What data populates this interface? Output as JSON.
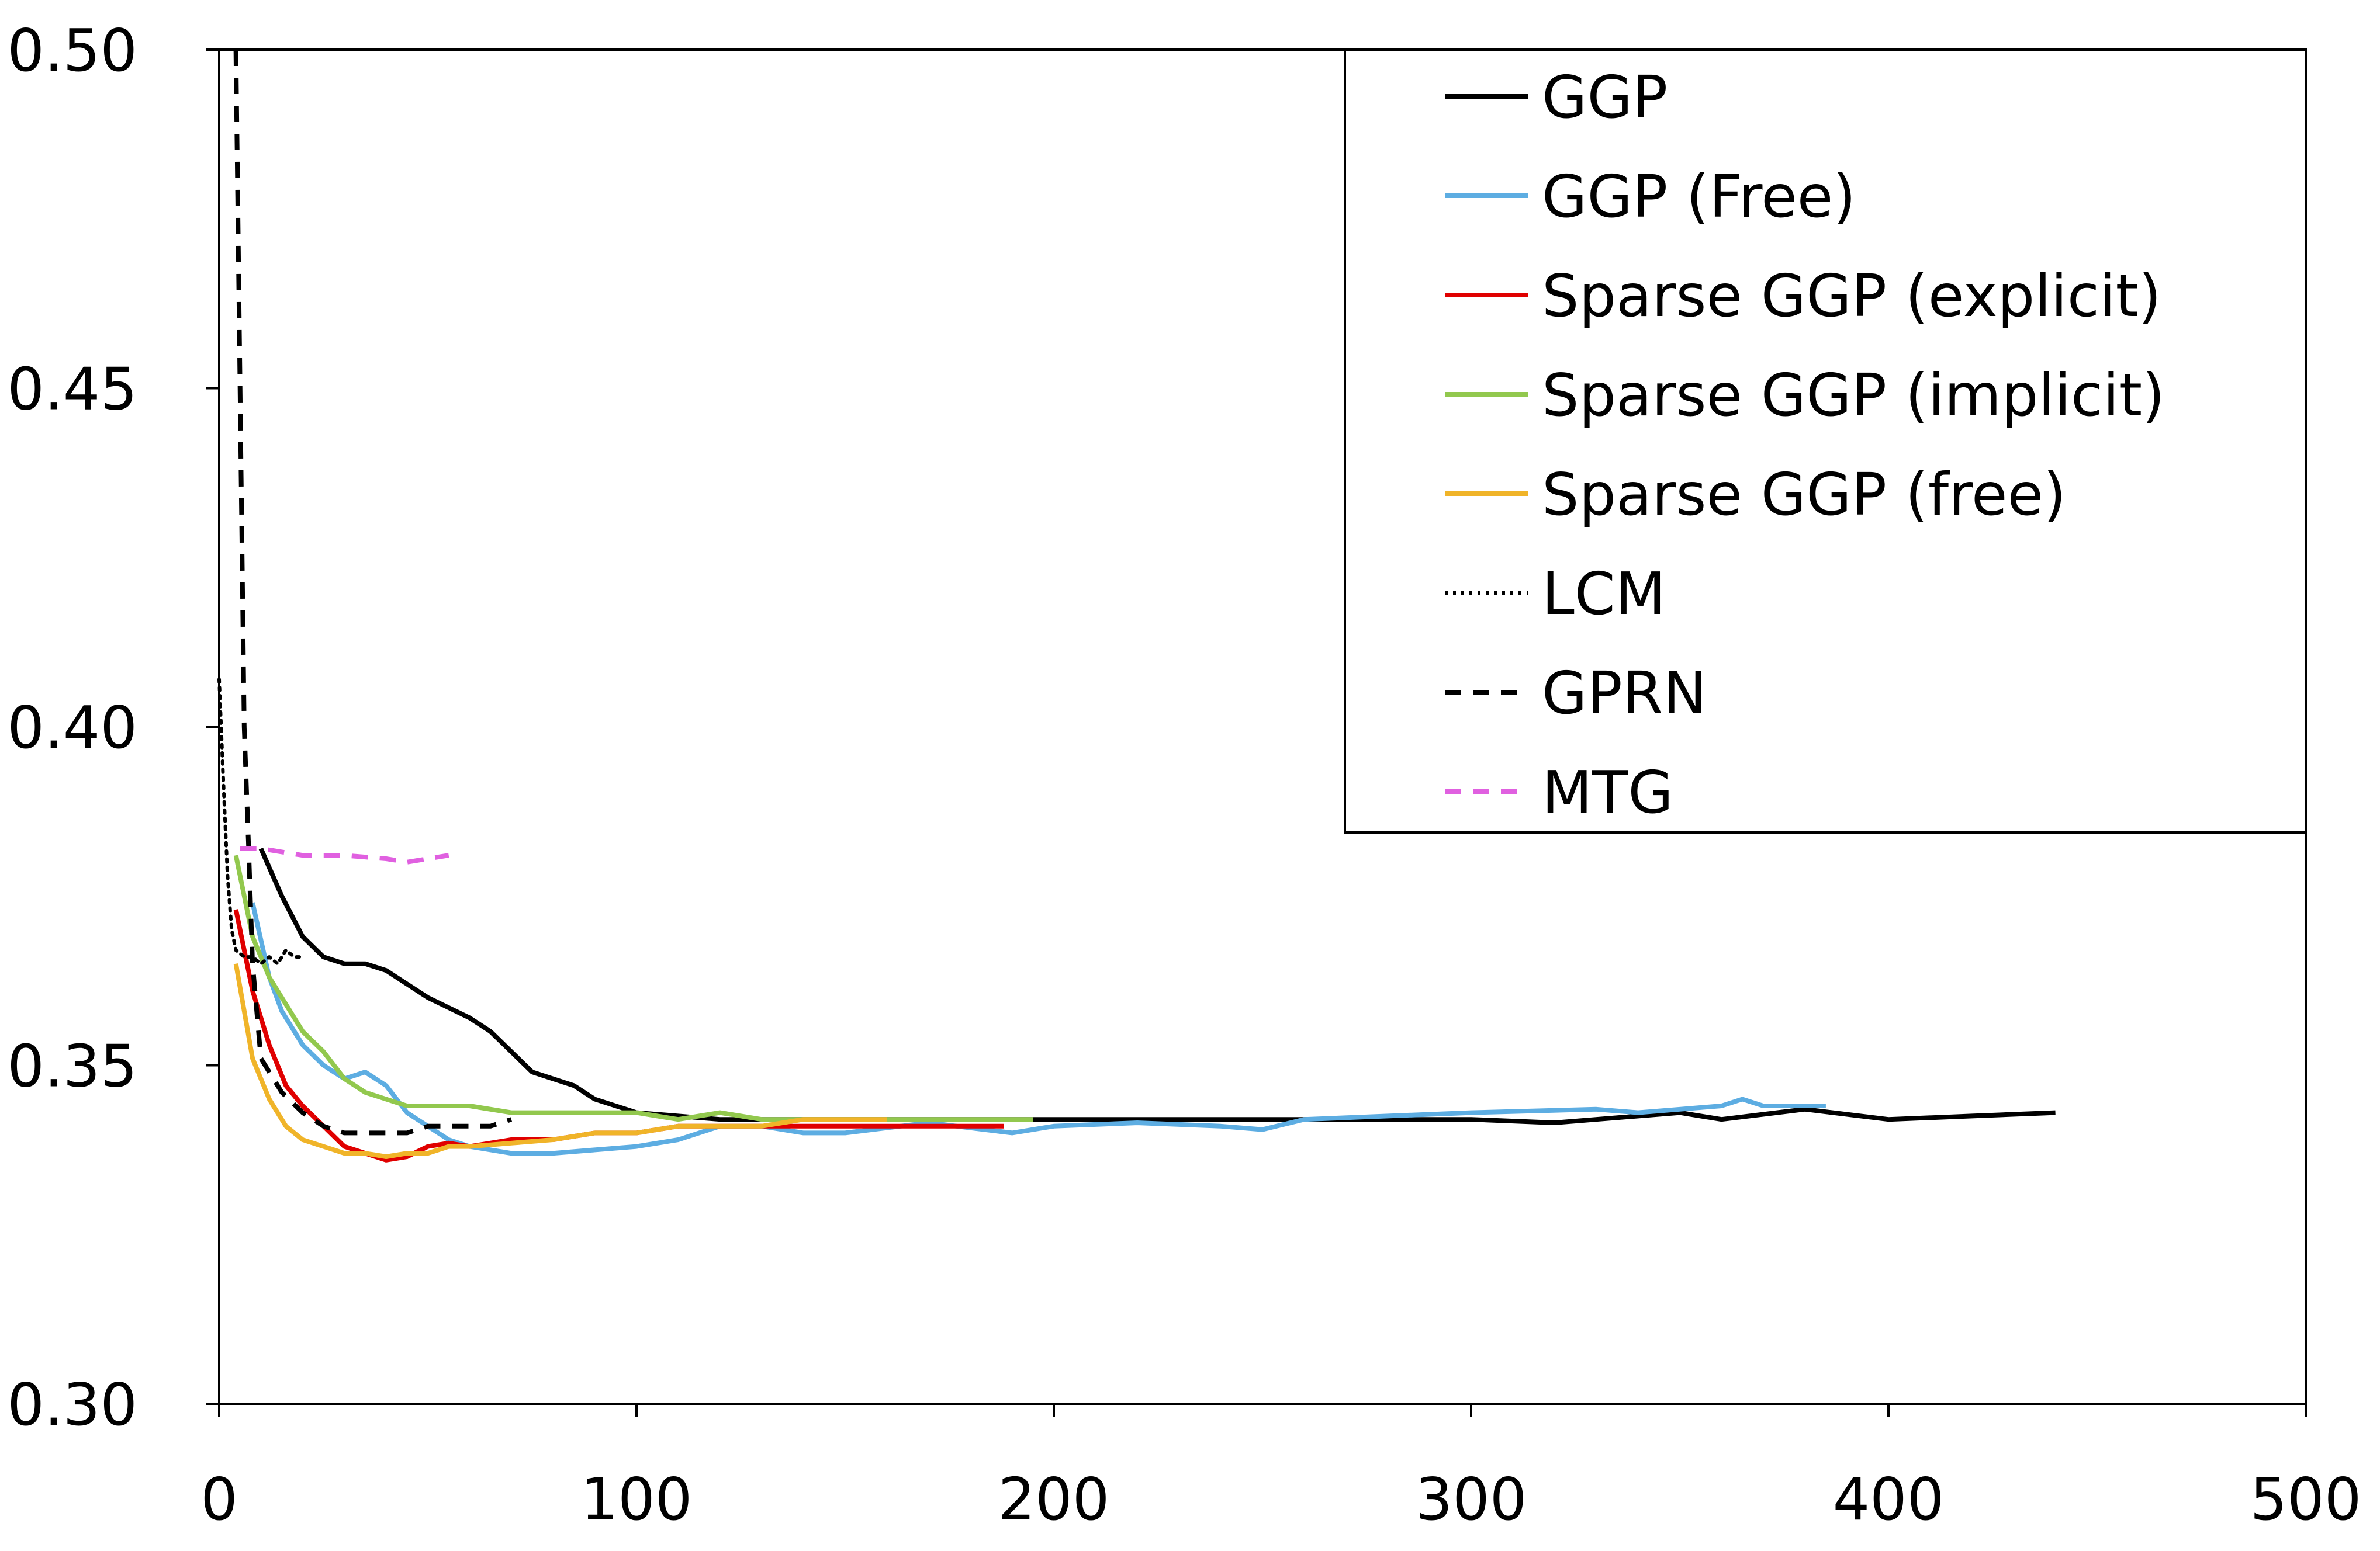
{
  "chart_data": {
    "type": "line",
    "title": "",
    "xlabel": "",
    "ylabel": "",
    "xlim": [
      0,
      500
    ],
    "ylim": [
      0.3,
      0.5
    ],
    "x_ticks": [
      0,
      100,
      200,
      300,
      400,
      500
    ],
    "x_tick_labels": [
      "0",
      "100",
      "200",
      "300",
      "400",
      "500"
    ],
    "y_ticks": [
      0.3,
      0.35,
      0.4,
      0.45,
      0.5
    ],
    "y_tick_labels": [
      "0.30",
      "0.35",
      "0.40",
      "0.45",
      "0.50"
    ],
    "grid": false,
    "legend_position": "top-right",
    "series": [
      {
        "name": "GGP",
        "color": "#000000",
        "style": "solid",
        "x": [
          10,
          15,
          20,
          25,
          30,
          35,
          40,
          50,
          60,
          65,
          70,
          75,
          80,
          85,
          90,
          95,
          100,
          120,
          150,
          180,
          200,
          250,
          300,
          320,
          350,
          360,
          380,
          400,
          420,
          440
        ],
        "y": [
          0.382,
          0.375,
          0.369,
          0.366,
          0.365,
          0.365,
          0.364,
          0.36,
          0.357,
          0.355,
          0.352,
          0.349,
          0.348,
          0.347,
          0.345,
          0.344,
          0.343,
          0.342,
          0.342,
          0.342,
          0.342,
          0.342,
          0.342,
          0.3415,
          0.343,
          0.342,
          0.3435,
          0.342,
          0.3425,
          0.343
        ]
      },
      {
        "name": "GGP (Free)",
        "color": "#5DADE2",
        "style": "solid",
        "x": [
          8,
          12,
          15,
          20,
          25,
          30,
          35,
          40,
          45,
          50,
          55,
          60,
          70,
          80,
          90,
          100,
          110,
          120,
          130,
          140,
          150,
          170,
          190,
          200,
          220,
          240,
          250,
          260,
          300,
          330,
          340,
          350,
          360,
          365,
          370,
          385
        ],
        "y": [
          0.374,
          0.363,
          0.358,
          0.353,
          0.35,
          0.348,
          0.349,
          0.347,
          0.343,
          0.341,
          0.339,
          0.338,
          0.337,
          0.337,
          0.3375,
          0.338,
          0.339,
          0.341,
          0.341,
          0.34,
          0.34,
          0.3415,
          0.34,
          0.341,
          0.3415,
          0.341,
          0.3405,
          0.342,
          0.343,
          0.3435,
          0.343,
          0.3435,
          0.344,
          0.345,
          0.344,
          0.344
        ]
      },
      {
        "name": "Sparse GGP (explicit)",
        "color": "#E00000",
        "style": "solid",
        "x": [
          4,
          8,
          12,
          16,
          20,
          25,
          30,
          35,
          40,
          45,
          50,
          55,
          60,
          70,
          80,
          90,
          100,
          110,
          120,
          130,
          140,
          150,
          160,
          170,
          180,
          188
        ],
        "y": [
          0.373,
          0.361,
          0.353,
          0.347,
          0.344,
          0.341,
          0.338,
          0.337,
          0.336,
          0.3365,
          0.338,
          0.3385,
          0.338,
          0.339,
          0.339,
          0.34,
          0.34,
          0.341,
          0.341,
          0.341,
          0.341,
          0.341,
          0.341,
          0.341,
          0.341,
          0.341
        ]
      },
      {
        "name": "Sparse GGP (implicit)",
        "color": "#92C84E",
        "style": "solid",
        "x": [
          4,
          8,
          12,
          16,
          20,
          25,
          30,
          35,
          40,
          45,
          50,
          55,
          60,
          70,
          80,
          90,
          100,
          110,
          120,
          130,
          140,
          150,
          160,
          170,
          180,
          190,
          195
        ],
        "y": [
          0.381,
          0.369,
          0.363,
          0.359,
          0.355,
          0.352,
          0.348,
          0.346,
          0.345,
          0.344,
          0.344,
          0.344,
          0.344,
          0.343,
          0.343,
          0.343,
          0.343,
          0.342,
          0.343,
          0.342,
          0.342,
          0.342,
          0.342,
          0.342,
          0.342,
          0.342,
          0.342
        ]
      },
      {
        "name": "Sparse GGP (free)",
        "color": "#F0B429",
        "style": "solid",
        "x": [
          4,
          8,
          12,
          16,
          20,
          25,
          30,
          35,
          40,
          45,
          50,
          55,
          60,
          70,
          80,
          90,
          100,
          110,
          120,
          130,
          140,
          150,
          160
        ],
        "y": [
          0.365,
          0.351,
          0.345,
          0.341,
          0.339,
          0.338,
          0.337,
          0.337,
          0.3365,
          0.337,
          0.337,
          0.338,
          0.338,
          0.3385,
          0.339,
          0.34,
          0.34,
          0.341,
          0.341,
          0.341,
          0.342,
          0.342,
          0.342
        ]
      },
      {
        "name": "LCM",
        "color": "#000000",
        "style": "dotted",
        "x": [
          0,
          1,
          2,
          3,
          4,
          6,
          8,
          10,
          12,
          14,
          16,
          18,
          20
        ],
        "y": [
          0.407,
          0.392,
          0.378,
          0.37,
          0.367,
          0.366,
          0.366,
          0.365,
          0.366,
          0.365,
          0.367,
          0.366,
          0.366
        ]
      },
      {
        "name": "GPRN",
        "color": "#000000",
        "style": "dashed",
        "x": [
          4,
          5,
          6,
          7,
          8,
          10,
          15,
          20,
          25,
          30,
          35,
          40,
          45,
          50,
          55,
          60,
          65,
          70
        ],
        "y": [
          0.5,
          0.45,
          0.4,
          0.383,
          0.365,
          0.351,
          0.346,
          0.343,
          0.341,
          0.34,
          0.34,
          0.34,
          0.34,
          0.341,
          0.341,
          0.341,
          0.341,
          0.342
        ]
      },
      {
        "name": "MTG",
        "color": "#E060E0",
        "style": "dashed",
        "x": [
          5,
          10,
          20,
          30,
          40,
          45,
          50,
          55
        ],
        "y": [
          0.382,
          0.382,
          0.381,
          0.381,
          0.3805,
          0.38,
          0.3805,
          0.381
        ]
      }
    ]
  }
}
